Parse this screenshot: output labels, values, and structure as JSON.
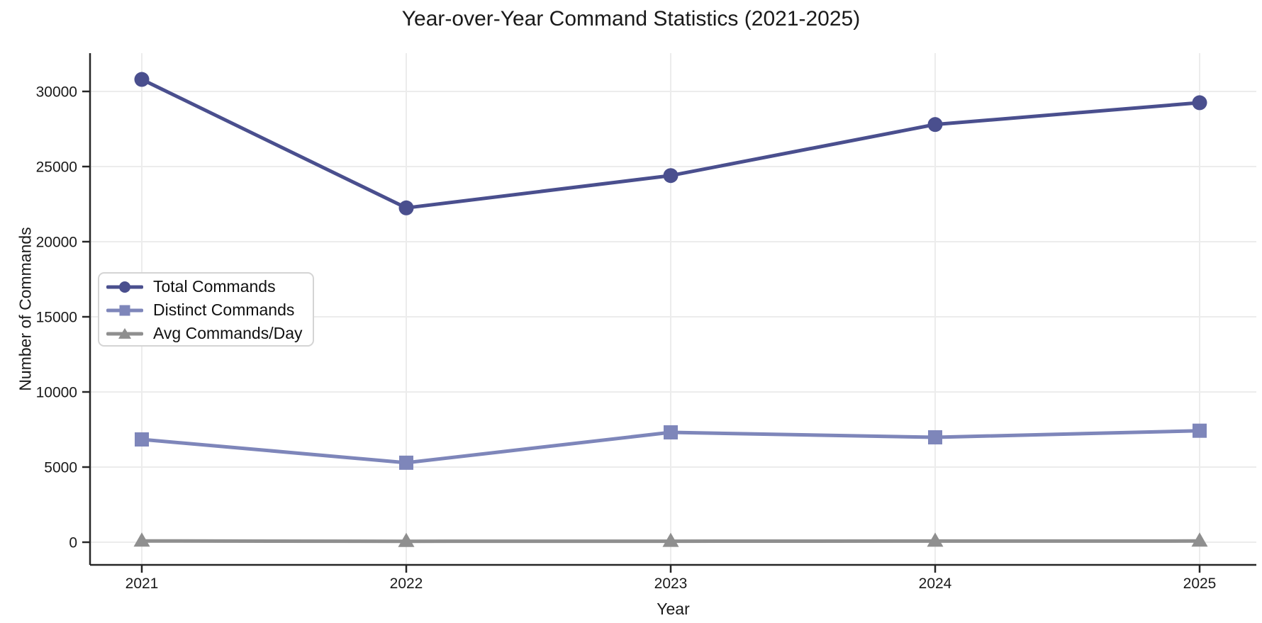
{
  "chart_data": {
    "type": "line",
    "title": "Year-over-Year Command Statistics (2021-2025)",
    "xlabel": "Year",
    "ylabel": "Number of Commands",
    "categories": [
      "2021",
      "2022",
      "2023",
      "2024",
      "2025"
    ],
    "series": [
      {
        "name": "Total Commands",
        "marker": "circle",
        "color": "#4a4f8e",
        "values": [
          30800,
          22250,
          24400,
          27800,
          29250
        ]
      },
      {
        "name": "Distinct Commands",
        "marker": "square",
        "color": "#7e86ba",
        "values": [
          6840,
          5290,
          7310,
          6980,
          7420
        ]
      },
      {
        "name": "Avg Commands/Day",
        "marker": "triangle",
        "color": "#8f8f8f",
        "values": [
          84,
          61,
          67,
          76,
          80
        ]
      }
    ],
    "yticks": [
      0,
      5000,
      10000,
      15000,
      20000,
      25000,
      30000
    ],
    "ylim": [
      0,
      32500
    ],
    "grid": true,
    "legend_position": "center-left",
    "colors": {
      "background": "#ffffff",
      "grid": "#ececec",
      "spine": "#262626",
      "tick_text": "#1a1a1a",
      "legend_border": "#d4d4d4"
    }
  }
}
